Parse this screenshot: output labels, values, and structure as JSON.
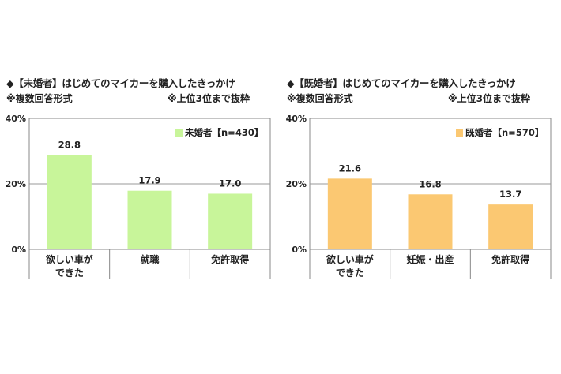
{
  "chart_data": [
    {
      "type": "bar",
      "title": "◆【未婚者】はじめてのマイカーを購入したきっかけ",
      "note_left": "※複数回答形式",
      "note_right": "※上位3位まで抜粋",
      "categories": [
        [
          "欲しい車が",
          "できた"
        ],
        [
          "就職"
        ],
        [
          "免許取得"
        ]
      ],
      "series": [
        {
          "name": "未婚者【n=430】",
          "values": [
            28.8,
            17.9,
            17.0
          ],
          "color": "#c8f59a"
        }
      ],
      "value_labels": [
        "28.8",
        "17.9",
        "17.0"
      ],
      "yticks": [
        "40%",
        "20%",
        "0%"
      ],
      "ylim": [
        0,
        40
      ],
      "legend_position": "top-right"
    },
    {
      "type": "bar",
      "title": "◆【既婚者】はじめてのマイカーを購入したきっかけ",
      "note_left": "※複数回答形式",
      "note_right": "※上位3位まで抜粋",
      "categories": [
        [
          "欲しい車が",
          "できた"
        ],
        [
          "妊娠・出産"
        ],
        [
          "免許取得"
        ]
      ],
      "series": [
        {
          "name": "既婚者【n=570】",
          "values": [
            21.6,
            16.8,
            13.7
          ],
          "color": "#fbc872"
        }
      ],
      "value_labels": [
        "21.6",
        "16.8",
        "13.7"
      ],
      "yticks": [
        "40%",
        "20%",
        "0%"
      ],
      "ylim": [
        0,
        40
      ],
      "legend_position": "top-right"
    }
  ]
}
